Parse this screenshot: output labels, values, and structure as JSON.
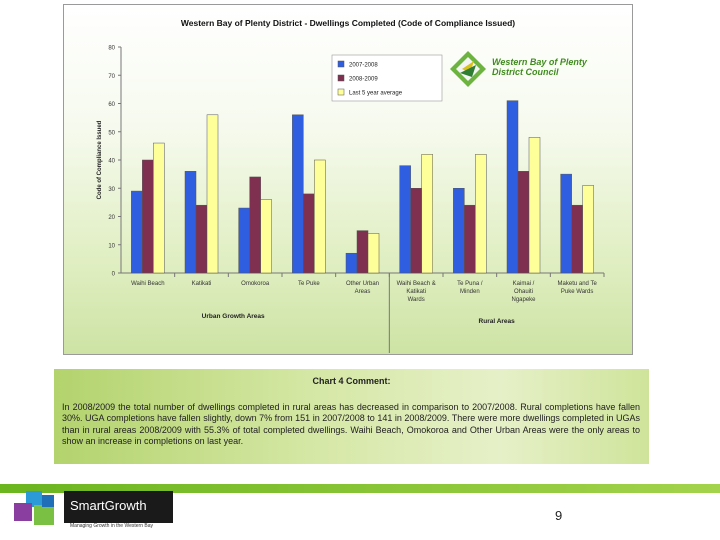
{
  "chart_data": {
    "type": "bar",
    "title": "Western Bay of Plenty District  - Dwellings Completed (Code of Compliance Issued)",
    "ylabel": "Code of Compliance Issued",
    "ylim": [
      0,
      80
    ],
    "yticks": [
      "0",
      "10",
      "20",
      "30",
      "40",
      "50",
      "60",
      "70",
      "80"
    ],
    "categories": [
      "Waihi Beach",
      "Katikati",
      "Omokoroa",
      "Te Puke",
      "Other Urban Areas",
      "Waihi Beach & Katikati Wards",
      "Te Puna / Minden",
      "Kaimai / Ohauiti Ngapeke",
      "Maketu and Te Puke Wards"
    ],
    "series": [
      {
        "name": "2007-2008",
        "color": "#2f5fe0",
        "values": [
          29,
          36,
          23,
          56,
          7,
          38,
          30,
          61,
          35
        ]
      },
      {
        "name": "2008-2009",
        "color": "#7f2f4f",
        "values": [
          40,
          24,
          34,
          28,
          15,
          30,
          24,
          36,
          24
        ]
      },
      {
        "name": "Last 5 year average",
        "color": "#ffff99",
        "values": [
          46,
          56,
          26,
          40,
          14,
          42,
          42,
          48,
          31
        ]
      }
    ],
    "group_labels": [
      "Urban Growth Areas",
      "Rural Areas"
    ],
    "legend_position": "top-left"
  },
  "chart_logo": {
    "line1": "Western Bay of Plenty",
    "line2": "District Council"
  },
  "comment": {
    "title": "Chart 4 Comment:",
    "body": "In 2008/2009 the total number of dwellings completed in rural areas has decreased in comparison to 2007/2008. Rural completions have fallen 30%. UGA completions have fallen slightly, down 7% from 151 in 2007/2008 to 141 in 2008/2009. There were more dwellings completed in UGAs than in rural areas 2008/2009 with 55.3% of total completed dwellings. Waihi Beach, Omokoroa and Other Urban Areas were the only areas to show an increase in completions on last year."
  },
  "footer": {
    "brand": "SmartGrowth",
    "tagline": "Managing Growth in the Western Bay",
    "page_number": "9"
  }
}
